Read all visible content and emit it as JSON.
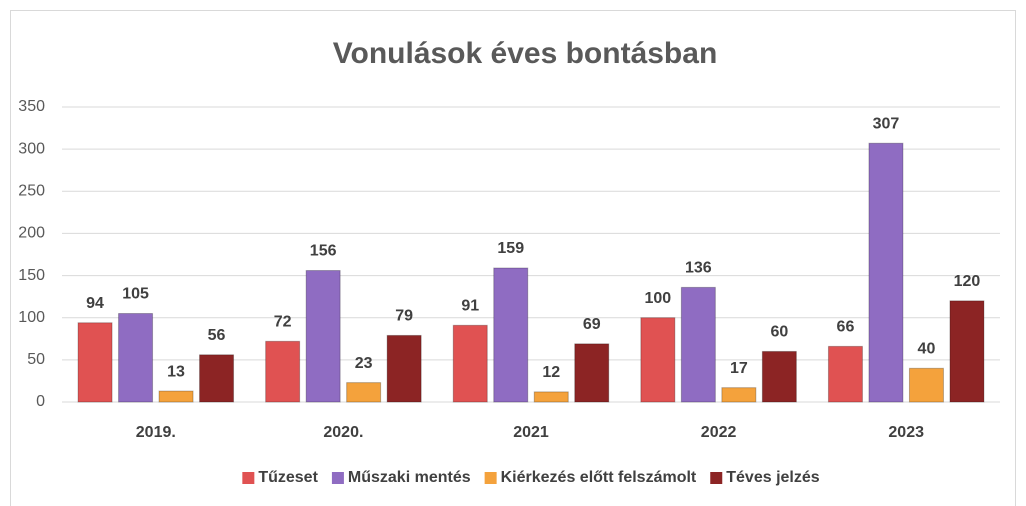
{
  "chart_data": {
    "type": "bar",
    "title": "Vonulások éves bontásban",
    "categories": [
      "2019.",
      "2020.",
      "2021",
      "2022",
      "2023"
    ],
    "series": [
      {
        "name": "Tűzeset",
        "color": "#e05252",
        "values": [
          94,
          72,
          91,
          100,
          66
        ]
      },
      {
        "name": "Műszaki mentés",
        "color": "#8f6cc2",
        "values": [
          105,
          156,
          159,
          136,
          307
        ]
      },
      {
        "name": "Kiérkezés előtt felszámolt",
        "color": "#f4a23c",
        "values": [
          13,
          23,
          12,
          17,
          40
        ]
      },
      {
        "name": "Téves jelzés",
        "color": "#8c2424",
        "values": [
          56,
          79,
          69,
          60,
          120
        ]
      }
    ],
    "ylim": [
      0,
      350
    ],
    "yticks": [
      0,
      50,
      100,
      150,
      200,
      250,
      300,
      350
    ],
    "grid": true,
    "legend": "bottom"
  }
}
